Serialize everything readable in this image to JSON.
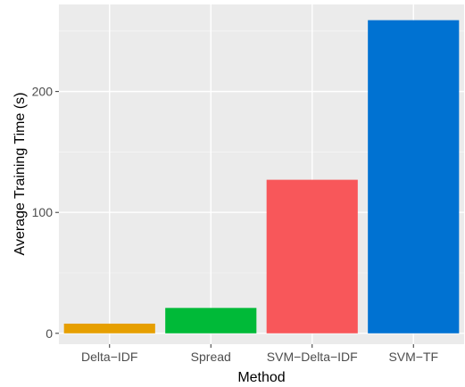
{
  "chart_data": {
    "type": "bar",
    "title": "",
    "xlabel": "Method",
    "ylabel": "Average Training Time (s)",
    "categories": [
      "Delta−IDF",
      "Spread",
      "SVM−Delta−IDF",
      "SVM−TF"
    ],
    "values": [
      8,
      21,
      127,
      259
    ],
    "colors": [
      "#E69F00",
      "#00BA38",
      "#F8575A",
      "#0072D2"
    ],
    "ylim": [
      -9,
      272
    ],
    "yticks": [
      0,
      100,
      200
    ],
    "ytick_labels": [
      "0",
      "100",
      "200"
    ],
    "grid": true,
    "panel_background": "#EBEBEB",
    "grid_color": "#FFFFFF",
    "legend": "none"
  }
}
